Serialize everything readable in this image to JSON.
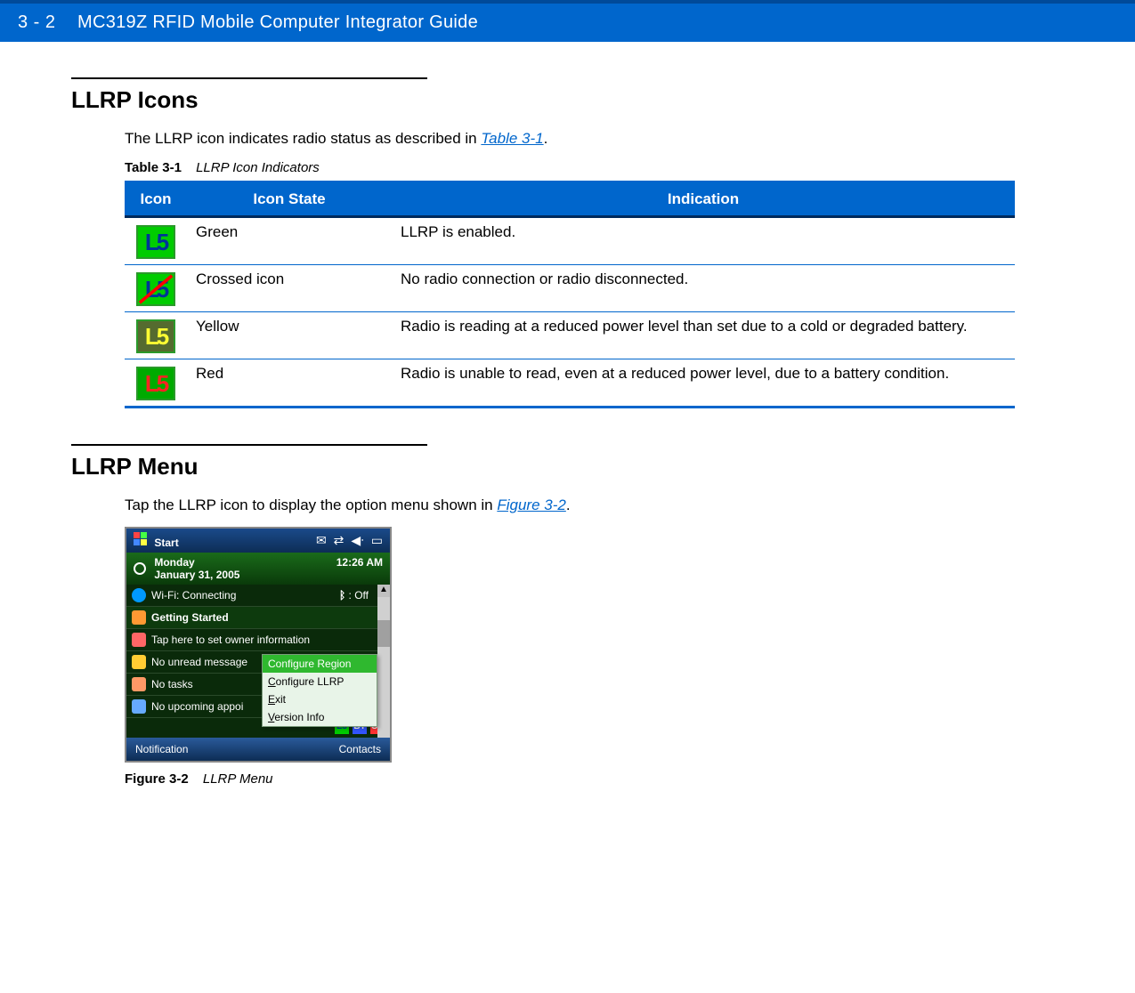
{
  "header": {
    "page_number": "3 - 2",
    "guide_title": "MC319Z RFID Mobile Computer Integrator Guide",
    "bg_color": "#0066cc",
    "top_border_color": "#004a99",
    "text_color": "#ffffff"
  },
  "section1": {
    "heading": "LLRP Icons",
    "intro_prefix": "The LLRP icon indicates radio status as described in ",
    "intro_link": "Table 3-1",
    "intro_suffix": "."
  },
  "table": {
    "caption_label": "Table 3-1",
    "caption_title": "LLRP Icon Indicators",
    "headers": {
      "icon": "Icon",
      "state": "Icon State",
      "indication": "Indication"
    },
    "header_bg": "#0066cc",
    "header_text": "#ffffff",
    "border_color": "#0066cc",
    "rows": [
      {
        "icon_variant": "green",
        "state": "Green",
        "indication": "LLRP is enabled."
      },
      {
        "icon_variant": "cross",
        "state": "Crossed icon",
        "indication": "No radio connection or radio disconnected."
      },
      {
        "icon_variant": "yellow",
        "state": "Yellow",
        "indication": "Radio is reading at a reduced power level than set due to a cold or degraded battery."
      },
      {
        "icon_variant": "red",
        "state": "Red",
        "indication": "Radio is unable to read, even at a reduced power level, due to a battery condition."
      }
    ],
    "icon_styles": {
      "green": {
        "bg": "#00cc00",
        "fg": "#003399",
        "border": "#2a9a2a",
        "crossed": false
      },
      "cross": {
        "bg": "#00cc00",
        "fg": "#003399",
        "border": "#2a9a2a",
        "crossed": true,
        "cross_color": "#ff0000"
      },
      "yellow": {
        "bg": "#556b2f",
        "fg": "#ffff33",
        "border": "#2a9a2a",
        "crossed": false
      },
      "red": {
        "bg": "#00aa00",
        "fg": "#ff2222",
        "border": "#2a9a2a",
        "crossed": false
      }
    },
    "icon_text": "L5"
  },
  "section2": {
    "heading": "LLRP Menu",
    "intro_prefix": "Tap the LLRP icon to display the option menu shown in ",
    "intro_link": "Figure 3-2",
    "intro_suffix": "."
  },
  "device": {
    "start_label": "Start",
    "time": "12:26 AM",
    "day": "Monday",
    "date": "January 31, 2005",
    "wifi_label": "Wi-Fi: Connecting",
    "bt_label": ": Off",
    "rows": [
      "Getting Started",
      "Tap here to set owner information",
      "No unread message",
      "No tasks",
      "No upcoming appoi"
    ],
    "popup": {
      "items": [
        {
          "label": "Configure Region",
          "highlight": true,
          "underline_first": true
        },
        {
          "label": "Configure LLRP",
          "highlight": false,
          "underline_first": true
        },
        {
          "label": "Exit",
          "highlight": false,
          "underline_first": true
        },
        {
          "label": "Version Info",
          "highlight": false,
          "underline_first": true
        }
      ],
      "highlight_bg": "#2fb82f",
      "highlight_fg": "#ffffff"
    },
    "bottom_left": "Notification",
    "bottom_right": "Contacts",
    "status_icons": [
      "L5",
      "BT",
      "SY"
    ],
    "colors": {
      "topbar_grad_a": "#1a4a8a",
      "topbar_grad_b": "#0d2d55",
      "date_grad_a": "#1a6b1a",
      "date_grad_b": "#0a3a0a",
      "row_bg": "#0a2a0a",
      "row_border": "#2a4a2a",
      "scroll_bg": "#d0d0d0"
    }
  },
  "figure": {
    "caption_label": "Figure 3-2",
    "caption_title": "LLRP Menu"
  }
}
